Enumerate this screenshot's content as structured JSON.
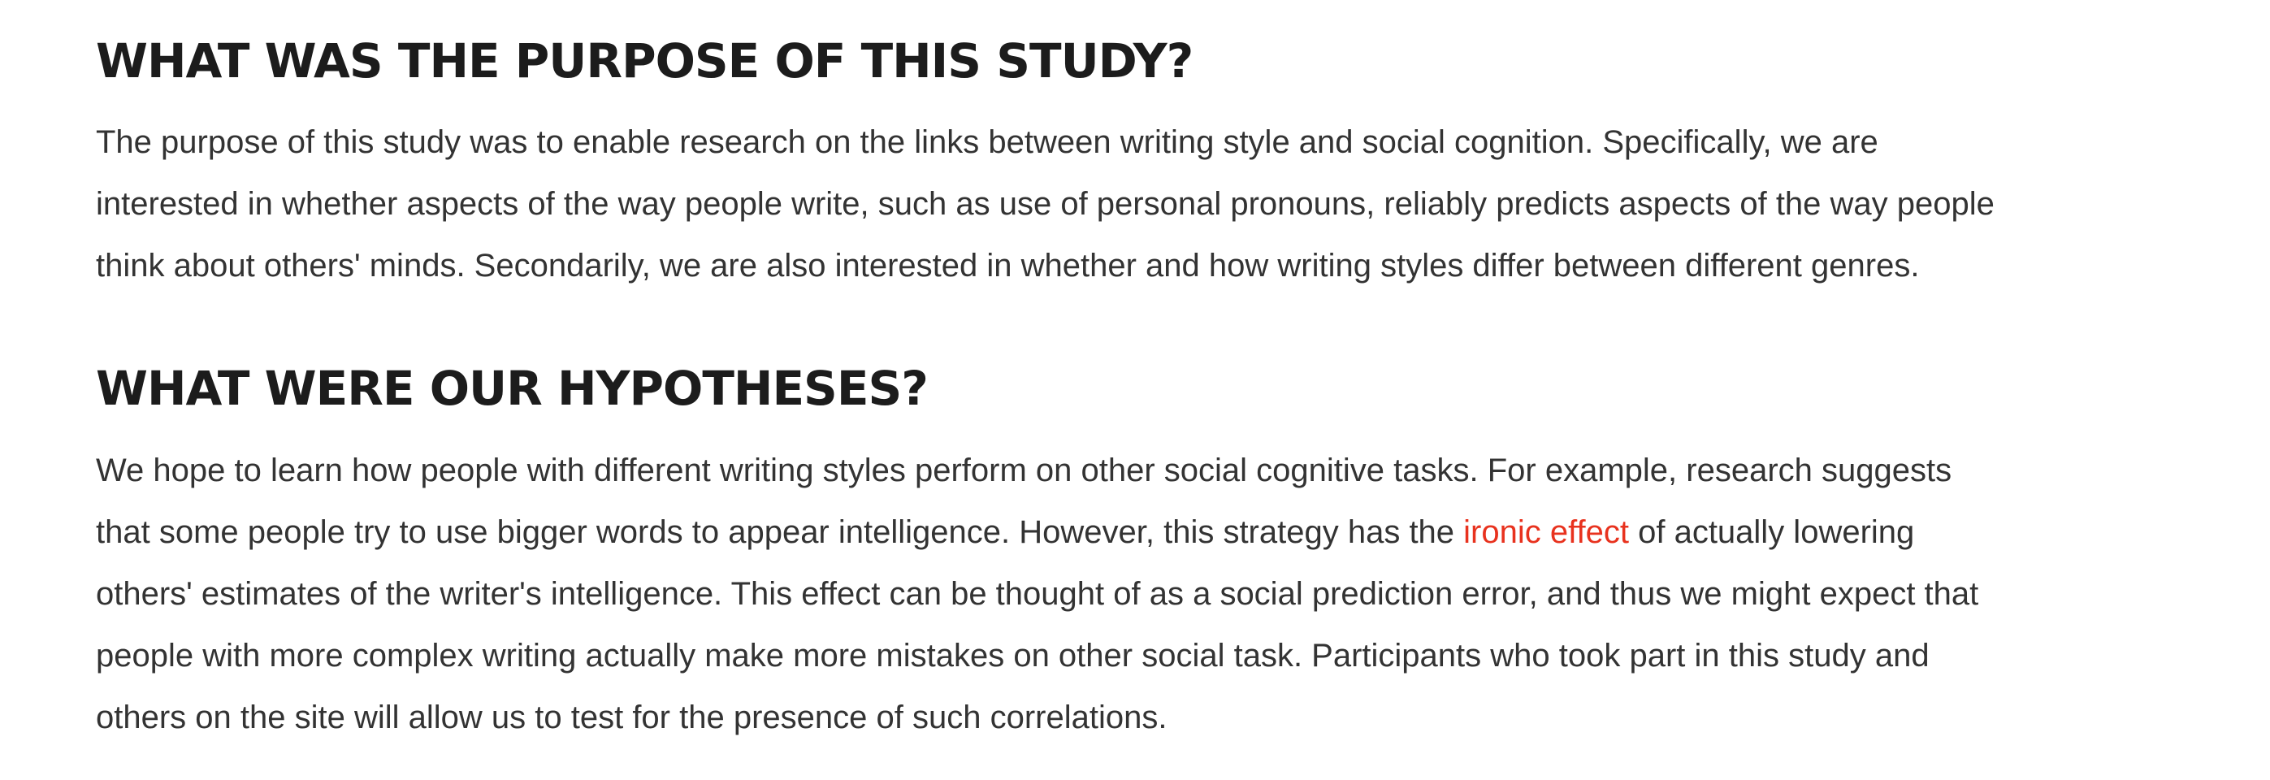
{
  "sections": [
    {
      "heading": "WHAT WAS THE PURPOSE OF THIS STUDY?",
      "lines": [
        "The purpose of this study was to enable research on the links between writing style and social cognition. Specifically, we are",
        "interested in whether aspects of the way people write, such as use of personal pronouns, reliably predicts aspects of the way people",
        "think about others' minds. Secondarily, we are also interested in whether and how writing styles differ between different genres."
      ]
    },
    {
      "heading": "WHAT WERE OUR HYPOTHESES?",
      "line1": "We hope to learn how people with different writing styles perform on other social cognitive tasks. For example, research suggests",
      "line2_before": "that some people try to use bigger words to appear intelligence. However, this strategy has the ",
      "link_text": "ironic effect",
      "line2_after": " of actually lowering",
      "line3": "others' estimates of the writer's intelligence. This effect can be thought of as a social prediction error, and thus we might expect that",
      "line4": "people with more complex writing actually make more mistakes on other social task. Participants who took part in this study and",
      "line5": "others on the site will allow us to test for the presence of such correlations."
    }
  ],
  "colors": {
    "heading": "#1c1c1c",
    "body_text": "#333333",
    "link": "#e8321e",
    "background": "#ffffff"
  }
}
